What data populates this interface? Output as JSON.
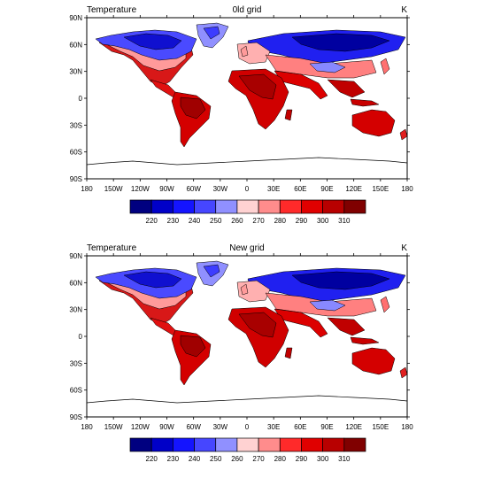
{
  "panels": [
    {
      "title_left": "Temperature",
      "title_center": "0ld grid",
      "title_right": "K"
    },
    {
      "title_left": "Temperature",
      "title_center": "New grid",
      "title_right": "K"
    }
  ],
  "lat_labels": [
    "90N",
    "60N",
    "30N",
    "0",
    "30S",
    "60S",
    "90S"
  ],
  "lon_labels": [
    "180",
    "150W",
    "120W",
    "90W",
    "60W",
    "30W",
    "0",
    "30E",
    "60E",
    "90E",
    "120E",
    "150E",
    "180"
  ],
  "colorbar": {
    "labels": [
      "220",
      "230",
      "240",
      "250",
      "260",
      "270",
      "280",
      "290",
      "300",
      "310"
    ],
    "colors": [
      "#000080",
      "#0000c8",
      "#1414ff",
      "#4646ff",
      "#9090ff",
      "#ffd2d2",
      "#ff8c8c",
      "#ff2a2a",
      "#e00000",
      "#b80000",
      "#800000"
    ]
  }
}
